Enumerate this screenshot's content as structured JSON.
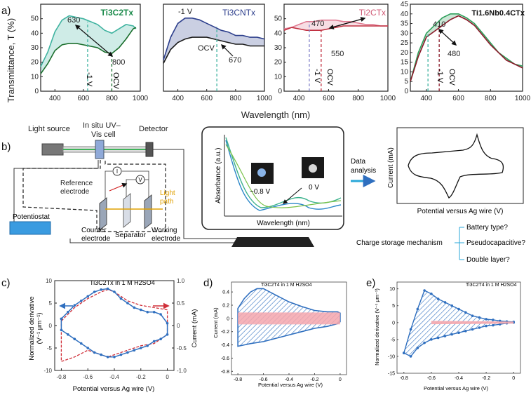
{
  "panel_a": {
    "letter": "a)",
    "ylabel": "Transmittance, T (%)",
    "xlabel": "Wavelength (nm)",
    "chart_data": [
      {
        "type": "line",
        "title": "Ti3C2Tx",
        "xlim": [
          300,
          1000
        ],
        "ylim": [
          0,
          60
        ],
        "yticks": [
          0,
          10,
          20,
          30,
          40,
          50
        ],
        "xticks": [
          400,
          600,
          800,
          1000
        ],
        "series": [
          {
            "name": "-1 V",
            "color": "#3fb3a0",
            "x": [
              300,
              350,
              400,
              450,
              500,
              550,
              600,
              650,
              700,
              750,
              800,
              850,
              900,
              950,
              970
            ],
            "y": [
              17,
              27,
              41,
              49,
              52,
              51,
              50,
              48,
              46,
              42,
              40,
              43,
              46,
              45,
              43
            ]
          },
          {
            "name": "OCV",
            "color": "#1a6e2c",
            "x": [
              300,
              350,
              400,
              450,
              500,
              550,
              600,
              650,
              700,
              750,
              800,
              850,
              900,
              950,
              970
            ],
            "y": [
              12,
              19,
              28,
              32,
              33,
              33,
              32,
              31,
              30,
              27,
              26,
              30,
              36,
              43,
              44
            ]
          }
        ],
        "annotations": [
          {
            "text": "630",
            "x": 630
          },
          {
            "text": "800",
            "x": 800
          },
          {
            "text": "-1 V",
            "x": 630
          },
          {
            "text": "OCV",
            "x": 800
          }
        ]
      },
      {
        "type": "line",
        "title": "Ti3CNTx",
        "xlim": [
          300,
          1000
        ],
        "ylim": [
          0,
          50
        ],
        "yticks": [],
        "xticks": [
          400,
          600,
          800,
          1000
        ],
        "series": [
          {
            "name": "-1 V",
            "color": "#2c3e8c",
            "x": [
              300,
              350,
              400,
              450,
              500,
              550,
              600,
              650,
              700,
              750,
              800,
              850,
              900,
              950,
              1000
            ],
            "y": [
              18,
              31,
              39,
              42,
              42,
              41,
              39,
              37,
              35,
              34,
              32,
              32,
              31,
              31,
              30
            ]
          },
          {
            "name": "OCV",
            "color": "#1a1a1a",
            "x": [
              300,
              350,
              400,
              450,
              500,
              550,
              600,
              650,
              700,
              750,
              800,
              850,
              900,
              950,
              1000
            ],
            "y": [
              16,
              24,
              28,
              30,
              31,
              31,
              31,
              30,
              29,
              28,
              27,
              27,
              26,
              26,
              26
            ]
          }
        ],
        "annotations": [
          {
            "text": "-1 V"
          },
          {
            "text": "OCV"
          },
          {
            "text": "670",
            "x": 670
          }
        ]
      },
      {
        "type": "line",
        "title": "Ti2CTx",
        "xlim": [
          300,
          1000
        ],
        "ylim": [
          0,
          60
        ],
        "yticks": [
          0,
          10,
          20,
          30,
          40,
          50
        ],
        "xticks": [
          400,
          600,
          800,
          1000
        ],
        "series": [
          {
            "name": "-1 V",
            "color": "#e07b92",
            "x": [
              300,
              350,
              400,
              450,
              500,
              550,
              600,
              650,
              700,
              750,
              800,
              850,
              900,
              950,
              1000
            ],
            "y": [
              43,
              44,
              46,
              48,
              48,
              49,
              49,
              49,
              48,
              48,
              47,
              46,
              46,
              45,
              45
            ]
          },
          {
            "name": "OCV",
            "color": "#c03040",
            "x": [
              300,
              350,
              400,
              450,
              500,
              550,
              600,
              650,
              700,
              750,
              800,
              850,
              900,
              950,
              1000
            ],
            "y": [
              42,
              44,
              43,
              42,
              42,
              42,
              43,
              44,
              45,
              45,
              45,
              45,
              45,
              45,
              45
            ]
          }
        ],
        "annotations": [
          {
            "text": "470",
            "x": 470
          },
          {
            "text": "550",
            "x": 550
          },
          {
            "text": "-1 V",
            "x": 470
          },
          {
            "text": "OCV",
            "x": 550
          }
        ]
      },
      {
        "type": "line",
        "title": "Ti1.6Nb0.4CTx",
        "xlim": [
          300,
          1000
        ],
        "ylim": [
          0,
          45
        ],
        "yticks": [
          0,
          5,
          10,
          15,
          20,
          25,
          30,
          35,
          40,
          45
        ],
        "xticks": [
          400,
          600,
          800,
          1000
        ],
        "series": [
          {
            "name": "-1 V",
            "color": "#2e9f5b",
            "x": [
              300,
              350,
              400,
              450,
              500,
              550,
              600,
              650,
              700,
              750,
              800,
              850,
              900,
              950,
              1000
            ],
            "y": [
              5,
              20,
              30,
              34,
              38,
              40,
              40,
              38,
              35,
              30,
              25,
              20,
              17,
              14,
              13
            ]
          },
          {
            "name": "OCV",
            "color": "#8b1a2a",
            "x": [
              300,
              350,
              400,
              450,
              500,
              550,
              600,
              650,
              700,
              750,
              800,
              850,
              900,
              950,
              1000
            ],
            "y": [
              5,
              18,
              28,
              31,
              34,
              37,
              39,
              37,
              34,
              29,
              24,
              20,
              16,
              14,
              12
            ]
          }
        ],
        "annotations": [
          {
            "text": "410",
            "x": 410
          },
          {
            "text": "480",
            "x": 480
          },
          {
            "text": "-1 V",
            "x": 410
          },
          {
            "text": "OCV",
            "x": 480
          }
        ]
      }
    ]
  },
  "panel_b": {
    "letter": "b)",
    "light_source": "Light source",
    "cell": [
      "In situ UV–",
      "Vis cell"
    ],
    "detector": "Detector",
    "reference": [
      "Reference",
      "electrode"
    ],
    "light_path": [
      "Light",
      "path"
    ],
    "potentiostat": "Potentiostat",
    "counter": [
      "Counter",
      "electrode"
    ],
    "separator": "Separator",
    "working": [
      "Working",
      "electrode"
    ],
    "meter_i": "I",
    "meter_v": "V",
    "absorbance": "Absorbance (a.u.)",
    "wavelength": "Wavelength (nm)",
    "neg_label": "−0.8 V",
    "zero_label": "0 V",
    "data_analysis": [
      "Data",
      "analysis"
    ],
    "current": "Current (mA)",
    "potential": "Potential versus Ag wire (V)",
    "mechanism": "Charge storage mechanism",
    "options": [
      "Battery type?",
      "Pseudocapacitive?",
      "Double layer?"
    ]
  },
  "panel_c": {
    "letter": "c)",
    "title": "Ti3C2Tx in 1 M H2SO4",
    "ylabel_left": [
      "Normalized derivative",
      "(V⁻¹ μm⁻¹)"
    ],
    "ylabel_right": "Current (mA)",
    "xlabel": "Potential versus Ag wire (V)",
    "chart_data": {
      "type": "line",
      "xlim": [
        -0.85,
        0.05
      ],
      "ylim": [
        -10,
        10
      ],
      "y2lim": [
        -1.0,
        1.0
      ],
      "xticks": [
        "-0.8",
        "-0.6",
        "-0.4",
        "-0.2",
        "0"
      ],
      "yticks": [
        "10",
        "5",
        "0",
        "-5",
        "-10"
      ],
      "y2ticks": [
        "1.0",
        "0.5",
        "0",
        "-0.5",
        "-1.0"
      ],
      "series": [
        {
          "name": "Normalized derivative",
          "color": "#2f6fbf",
          "marker": "circle",
          "x": [
            -0.8,
            -0.75,
            -0.7,
            -0.65,
            -0.6,
            -0.55,
            -0.5,
            -0.45,
            -0.4,
            -0.35,
            -0.3,
            -0.25,
            -0.2,
            -0.15,
            -0.1,
            -0.05,
            0,
            0,
            -0.05,
            -0.1,
            -0.15,
            -0.2,
            -0.25,
            -0.3,
            -0.35,
            -0.4,
            -0.45,
            -0.5,
            -0.55,
            -0.6,
            -0.65,
            -0.7,
            -0.75,
            -0.8,
            -0.8
          ],
          "y": [
            1.5,
            3,
            4.5,
            5.5,
            6.5,
            7.5,
            8,
            8.2,
            7.5,
            6,
            5,
            4,
            3.5,
            3,
            3,
            2.5,
            0.5,
            -2,
            -3,
            -3.5,
            -4.5,
            -5,
            -5.5,
            -6,
            -6.5,
            -7,
            -7,
            -6.5,
            -6,
            -5,
            -4,
            -3,
            -2,
            -1,
            1.5
          ]
        },
        {
          "name": "Current",
          "color": "#d0303a",
          "dash": true,
          "axis": "right",
          "x": [
            -0.8,
            -0.7,
            -0.6,
            -0.5,
            -0.45,
            -0.4,
            -0.3,
            -0.2,
            -0.1,
            0,
            0,
            -0.1,
            -0.2,
            -0.3,
            -0.4,
            -0.45,
            -0.5,
            -0.6,
            -0.7,
            -0.8,
            -0.8
          ],
          "y": [
            0.1,
            0.4,
            0.6,
            0.75,
            0.8,
            0.75,
            0.55,
            0.45,
            0.4,
            0.35,
            -0.2,
            -0.4,
            -0.45,
            -0.55,
            -0.65,
            -0.7,
            -0.65,
            -0.55,
            -0.7,
            -0.8,
            0.1
          ]
        }
      ],
      "arrows": [
        {
          "side": "left",
          "color": "#2f6fbf"
        },
        {
          "side": "right",
          "color": "#d0303a"
        }
      ]
    }
  },
  "panel_d": {
    "letter": "d)",
    "title": "Ti3C2T4 in 1 M H2SO4",
    "ylabel": "Current (mA)",
    "xlabel": "Potential versus Ag wire (V)",
    "chart_data": {
      "type": "area",
      "xlim": [
        -0.85,
        0.05
      ],
      "ylim": [
        -0.85,
        0.55
      ],
      "xticks": [
        "-0.8",
        "-0.6",
        "-0.4",
        "-0.2",
        "0"
      ],
      "yticks": [
        "0.4",
        "0.2",
        "0",
        "-0.2",
        "-0.4",
        "-0.6",
        "-0.8"
      ],
      "series": [
        {
          "name": "CV",
          "color": "#2f6fbf",
          "hatch": true,
          "x": [
            -0.8,
            -0.75,
            -0.7,
            -0.65,
            -0.6,
            -0.5,
            -0.4,
            -0.3,
            -0.2,
            -0.1,
            -0.02,
            0,
            0,
            -0.02,
            -0.1,
            -0.2,
            -0.3,
            -0.4,
            -0.5,
            -0.6,
            -0.7,
            -0.75,
            -0.8,
            -0.8
          ],
          "y": [
            0.15,
            0.3,
            0.4,
            0.45,
            0.45,
            0.35,
            0.25,
            0.18,
            0.12,
            0.1,
            0.1,
            0.08,
            -0.05,
            -0.08,
            -0.12,
            -0.15,
            -0.2,
            -0.25,
            -0.3,
            -0.35,
            -0.38,
            -0.4,
            -0.42,
            0.15
          ]
        },
        {
          "name": "Double layer",
          "color": "#f4a6ad",
          "x": [
            -0.8,
            0
          ],
          "y_top": [
            0.09,
            0.09
          ],
          "y_bottom": [
            -0.09,
            -0.09
          ]
        }
      ]
    }
  },
  "panel_e": {
    "letter": "e)",
    "title": "Ti3C2T4 in 1 M H2SO4",
    "ylabel": "Normalized derivative (V⁻¹ μm⁻¹)",
    "xlabel": "Potential versus Ag wire (V)",
    "chart_data": {
      "type": "area",
      "xlim": [
        -0.85,
        0.05
      ],
      "ylim": [
        -15,
        12
      ],
      "xticks": [
        "-0.8",
        "-0.6",
        "-0.4",
        "-0.2",
        "0"
      ],
      "yticks": [
        "10",
        "5",
        "0",
        "-5",
        "-10",
        "-15"
      ],
      "series": [
        {
          "name": "Normalized derivative",
          "color": "#2f6fbf",
          "marker": "circle",
          "hatch": true,
          "x": [
            -0.8,
            -0.75,
            -0.7,
            -0.65,
            -0.6,
            -0.55,
            -0.5,
            -0.45,
            -0.4,
            -0.35,
            -0.3,
            -0.25,
            -0.2,
            -0.15,
            -0.1,
            -0.05,
            0,
            0,
            -0.05,
            -0.1,
            -0.15,
            -0.2,
            -0.25,
            -0.3,
            -0.35,
            -0.4,
            -0.45,
            -0.5,
            -0.55,
            -0.6,
            -0.65,
            -0.7,
            -0.75,
            -0.8
          ],
          "y": [
            -9,
            -2,
            4,
            9.5,
            8.5,
            7,
            6,
            5,
            4,
            3,
            2,
            1.5,
            1,
            0.8,
            0.5,
            0.3,
            0.2,
            0,
            -0.2,
            -0.5,
            -0.8,
            -1,
            -1.5,
            -2,
            -2.5,
            -3,
            -3.5,
            -4,
            -4.5,
            -5,
            -6,
            -7.5,
            -10,
            -9
          ]
        },
        {
          "name": "Double layer",
          "color": "#f4a6ad",
          "x": [
            -0.6,
            0
          ],
          "y_top": [
            0.5,
            0.3
          ],
          "y_bottom": [
            -0.5,
            -0.3
          ]
        }
      ]
    }
  }
}
